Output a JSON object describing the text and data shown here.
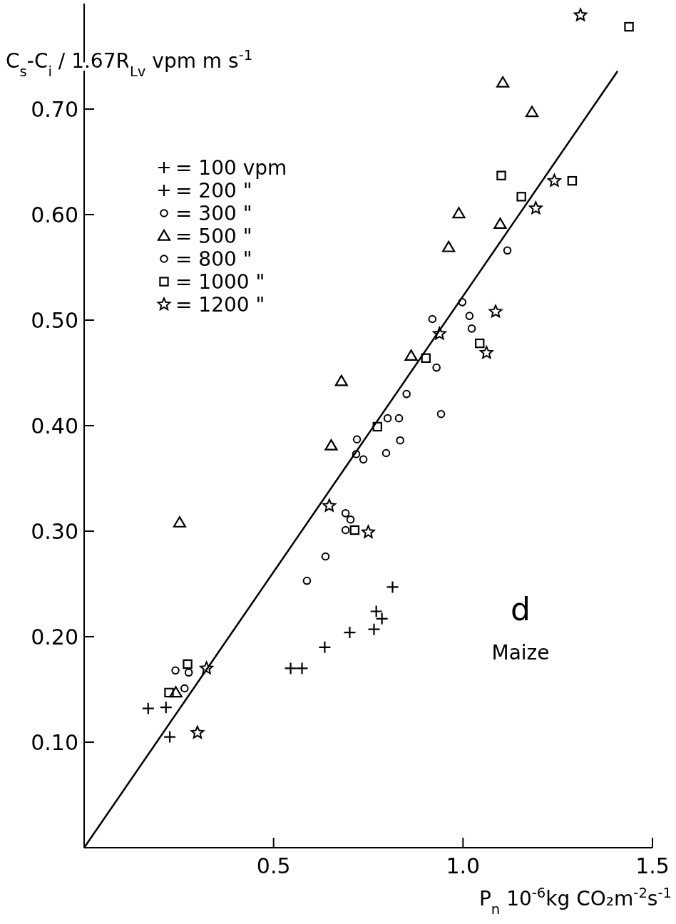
{
  "chart_data": {
    "type": "scatter",
    "ylabel": "C$_{s}$-C$_{i}$ / 1.67R$_{Lv}$  vpm  m s$^{-1}$",
    "xlabel": "P$_{n}$ 10$^{-6}$kg CO₂m$^{-2}$s$^{-1}$",
    "xlim": [
      0,
      1.5
    ],
    "xticks": [
      0.5,
      {
        "value": 1,
        "label": "1.0"
      },
      1.5
    ],
    "ylim": [
      0,
      0.8
    ],
    "yticks": [
      {
        "value": 0.1,
        "label": "0.10"
      },
      {
        "value": 0.2,
        "label": "0.20"
      },
      {
        "value": 0.3,
        "label": "0.30"
      },
      {
        "value": 0.4,
        "label": "0.40"
      },
      {
        "value": 0.5,
        "label": "0.50"
      },
      {
        "value": 0.6,
        "label": "0.60"
      },
      {
        "value": 0.7,
        "label": "0.70"
      }
    ],
    "grid": false,
    "legend": "top left",
    "annotations": [
      "d",
      "Maize"
    ],
    "series": [
      {
        "name": "= 100 vpm",
        "color": "#000000",
        "marker": "cross",
        "x": [
          0.169
        ],
        "values": [
          0.132
        ]
      },
      {
        "name": "= 200 \"",
        "color": "#000000",
        "marker": "cross",
        "x": [
          0.216,
          0.226,
          0.545,
          0.575,
          0.635,
          0.701,
          0.765,
          0.771,
          0.786,
          0.814
        ],
        "values": [
          0.133,
          0.105,
          0.17,
          0.17,
          0.19,
          0.204,
          0.207,
          0.224,
          0.217,
          0.247
        ]
      },
      {
        "name": "= 300 \"",
        "color": "#000000",
        "marker": "circle",
        "x": [
          0.241,
          0.265,
          0.588,
          0.637,
          0.69,
          0.703,
          0.718,
          0.72,
          0.737,
          0.797,
          0.801,
          0.834,
          0.851,
          0.919,
          0.93,
          0.998,
          1.017,
          1.117
        ],
        "values": [
          0.168,
          0.151,
          0.253,
          0.276,
          0.317,
          0.311,
          0.373,
          0.387,
          0.368,
          0.374,
          0.407,
          0.386,
          0.43,
          0.501,
          0.455,
          0.517,
          0.504,
          0.566
        ]
      },
      {
        "name": "= 500 \"",
        "color": "#000000",
        "marker": "triangle",
        "x": [
          0.242,
          0.252,
          0.652,
          0.679,
          0.863,
          0.962,
          0.989,
          1.098,
          1.105,
          1.182
        ],
        "values": [
          0.147,
          0.308,
          0.381,
          0.442,
          0.466,
          0.569,
          0.601,
          0.591,
          0.725,
          0.697
        ]
      },
      {
        "name": "= 800 \"",
        "color": "#000000",
        "marker": "circle",
        "x": [
          0.276,
          0.69,
          0.831,
          0.942,
          1.023
        ],
        "values": [
          0.166,
          0.301,
          0.407,
          0.411,
          0.492
        ]
      },
      {
        "name": "= 1000 \"",
        "color": "#000000",
        "marker": "square",
        "x": [
          0.224,
          0.273,
          0.714,
          0.774,
          0.902,
          1.044,
          1.101,
          1.154,
          1.288,
          1.438
        ],
        "values": [
          0.147,
          0.174,
          0.301,
          0.399,
          0.464,
          0.478,
          0.637,
          0.617,
          0.632,
          0.778
        ]
      },
      {
        "name": "= 1200 \"",
        "color": "#000000",
        "marker": "star",
        "x": [
          0.299,
          0.323,
          0.647,
          0.75,
          0.938,
          1.062,
          1.086,
          1.192,
          1.241,
          1.31
        ],
        "values": [
          0.109,
          0.17,
          0.324,
          0.299,
          0.487,
          0.469,
          0.508,
          0.606,
          0.632,
          0.789
        ]
      },
      {
        "type": "line",
        "color": "#000000",
        "line_style": "solid",
        "marker": "none",
        "x": [
          0,
          1.408
        ],
        "values": [
          0,
          0.736
        ]
      }
    ]
  }
}
